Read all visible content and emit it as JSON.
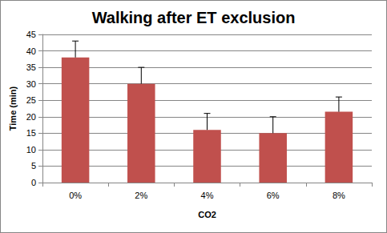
{
  "chart_data": {
    "type": "bar",
    "title": "Walking after ET exclusion",
    "x_label": "CO2",
    "y_label": "Time (min)",
    "categories": [
      "0%",
      "2%",
      "4%",
      "6%",
      "8%"
    ],
    "values": [
      38,
      30,
      16,
      15,
      21.5
    ],
    "errors": [
      5,
      5,
      5,
      5,
      4.5
    ],
    "color": "#c0504d",
    "ylim": [
      0,
      45
    ],
    "yticks": [
      0,
      5,
      10,
      15,
      20,
      25,
      30,
      35,
      40,
      45
    ],
    "grid": true
  }
}
